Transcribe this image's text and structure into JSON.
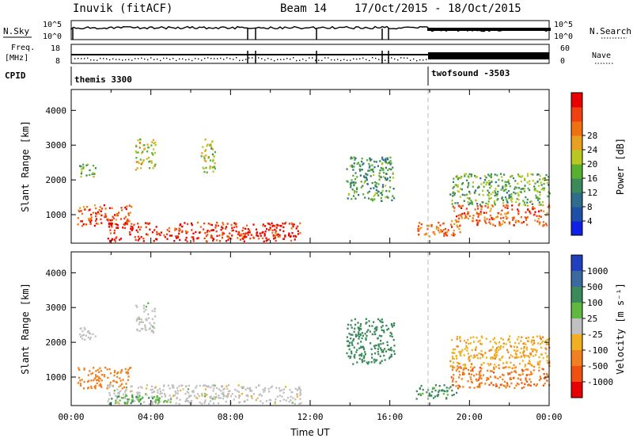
{
  "header": {
    "station": "Inuvik",
    "method": "(fitACF)",
    "beam": "Beam 14",
    "date_range": "17/Oct/2015 - 18/Oct/2015"
  },
  "summary": {
    "nsky_label": "N.Sky",
    "nsearch_label": "N.Search",
    "nsky_ticks": [
      "10^5",
      "10^0"
    ],
    "nsearch_ticks": [
      "10^5",
      "10^0"
    ],
    "freq_label": "Freq.",
    "freq_unit": "[MHz]",
    "freq_ticks": [
      "18",
      "8"
    ],
    "nave_label": "Nave",
    "nave_ticks": [
      "60",
      "0"
    ],
    "cpid_label": "CPID",
    "cpid_segments": [
      {
        "name": "themis 3300",
        "start_hour": 0
      },
      {
        "name": "twofsound -3503",
        "start_hour": 18
      }
    ]
  },
  "chart_data": [
    {
      "type": "heatmap",
      "panel": "power",
      "ylabel": "Slant Range [km]",
      "xlabel": "",
      "ylim": [
        180,
        4600
      ],
      "xlim_hours": [
        0,
        24
      ],
      "yticks": [
        "1000",
        "2000",
        "3000",
        "4000"
      ],
      "colorbar_label": "Power [dB]",
      "colorbar_ticks": [
        "4",
        "8",
        "12",
        "16",
        "20",
        "24",
        "28"
      ],
      "colorbar_colors": [
        "#1020e6",
        "#1e50a8",
        "#2e6e8c",
        "#3a8a5a",
        "#58b030",
        "#b8c820",
        "#e8a020",
        "#f07010",
        "#f04010",
        "#e80000"
      ],
      "regions": [
        {
          "t": [
            0.3,
            3.0
          ],
          "r": [
            700,
            1300
          ],
          "level": 26
        },
        {
          "t": [
            1.8,
            11.5
          ],
          "r": [
            250,
            800
          ],
          "level": 29
        },
        {
          "t": [
            3.2,
            4.2
          ],
          "r": [
            2300,
            3200
          ],
          "level": 18
        },
        {
          "t": [
            0.3,
            1.2
          ],
          "r": [
            2100,
            2500
          ],
          "level": 15
        },
        {
          "t": [
            6.5,
            7.2
          ],
          "r": [
            2200,
            3200
          ],
          "level": 17
        },
        {
          "t": [
            13.8,
            16.2
          ],
          "r": [
            1400,
            2700
          ],
          "level": 12
        },
        {
          "t": [
            17.3,
            19.5
          ],
          "r": [
            400,
            800
          ],
          "level": 24
        },
        {
          "t": [
            19.0,
            24.0
          ],
          "r": [
            700,
            1300
          ],
          "level": 25
        },
        {
          "t": [
            19.0,
            24.0
          ],
          "r": [
            1300,
            2200
          ],
          "level": 14
        }
      ]
    },
    {
      "type": "heatmap",
      "panel": "velocity",
      "ylabel": "Slant Range [km]",
      "xlabel": "Time UT",
      "ylim": [
        180,
        4600
      ],
      "xlim_hours": [
        0,
        24
      ],
      "xticks": [
        "00:00",
        "04:00",
        "08:00",
        "12:00",
        "16:00",
        "20:00",
        "00:00"
      ],
      "yticks": [
        "1000",
        "2000",
        "3000",
        "4000"
      ],
      "colorbar_label": "Velocity [m s⁻¹]",
      "colorbar_ticks": [
        "1000",
        "500",
        "100",
        "25",
        "-25",
        "-100",
        "-500",
        "-1000"
      ],
      "colorbar_colors": [
        "#2040c0",
        "#3a6aa0",
        "#3a8a5a",
        "#60b840",
        "#c0c0c0",
        "#f0b020",
        "#f08020",
        "#f05010",
        "#e80000"
      ],
      "regions": [
        {
          "t": [
            0.3,
            3.0
          ],
          "r": [
            700,
            1300
          ],
          "level": -200
        },
        {
          "t": [
            1.8,
            11.5
          ],
          "r": [
            250,
            800
          ],
          "level": 0
        },
        {
          "t": [
            1.8,
            5.0
          ],
          "r": [
            250,
            500
          ],
          "level": 80
        },
        {
          "t": [
            3.2,
            4.2
          ],
          "r": [
            2300,
            3200
          ],
          "level": 0
        },
        {
          "t": [
            0.3,
            1.2
          ],
          "r": [
            2100,
            2500
          ],
          "level": 0
        },
        {
          "t": [
            13.8,
            16.2
          ],
          "r": [
            1400,
            2700
          ],
          "level": 300
        },
        {
          "t": [
            17.3,
            19.5
          ],
          "r": [
            400,
            800
          ],
          "level": 150
        },
        {
          "t": [
            19.0,
            24.0
          ],
          "r": [
            700,
            1300
          ],
          "level": -400
        },
        {
          "t": [
            19.0,
            24.0
          ],
          "r": [
            1300,
            2200
          ],
          "level": -80
        }
      ]
    }
  ],
  "colors": {
    "axis": "#000000",
    "dashed_marker": "#bbbbbb"
  }
}
